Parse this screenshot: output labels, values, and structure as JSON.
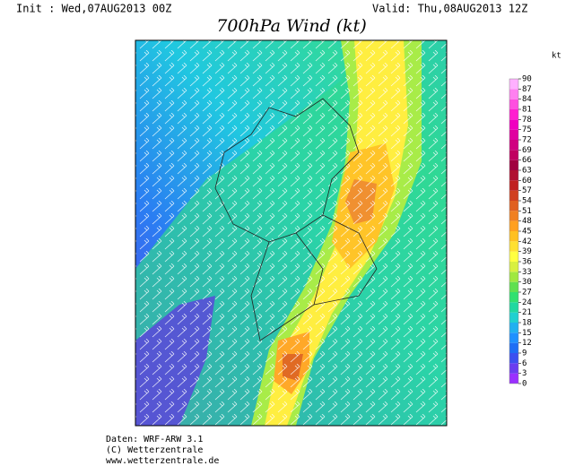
{
  "header": {
    "init": "Init : Wed,07AUG2013 00Z",
    "valid": "Valid: Thu,08AUG2013 12Z"
  },
  "title": "700hPa Wind (kt)",
  "colorbar": {
    "unit": "kt",
    "ticks": [
      0,
      3,
      6,
      9,
      12,
      15,
      18,
      21,
      24,
      27,
      30,
      33,
      36,
      39,
      42,
      45,
      48,
      51,
      54,
      57,
      60,
      63,
      66,
      69,
      72,
      75,
      78,
      81,
      84,
      87,
      90
    ],
    "colors": [
      "#9b30ff",
      "#6a3df0",
      "#3c50f0",
      "#1e6ef5",
      "#1e90ff",
      "#20b0f0",
      "#20d0d0",
      "#20d8a0",
      "#30e070",
      "#60e050",
      "#a0e840",
      "#d8f040",
      "#ffff40",
      "#ffe030",
      "#ffc020",
      "#ffa020",
      "#f08020",
      "#e06020",
      "#d04020",
      "#c02020",
      "#b01030",
      "#a00040",
      "#c00060",
      "#d00080",
      "#e000a0",
      "#f000c0",
      "#ff20d0",
      "#ff50e0",
      "#ff80f0",
      "#ffb0ff"
    ]
  },
  "footer": [
    "Daten: WRF-ARW 3.1",
    "(C) Wetterzentrale",
    "www.wetterzentrale.de"
  ]
}
